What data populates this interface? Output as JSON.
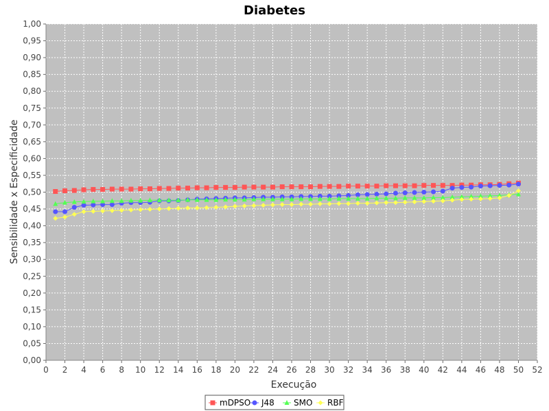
{
  "chart_data": {
    "type": "line",
    "title": "Diabetes",
    "xlabel": "Execução",
    "ylabel": "Sensibilidade x Especificidade",
    "xlim": [
      0,
      52
    ],
    "ylim": [
      0.0,
      1.0
    ],
    "x_ticks": [
      0,
      2,
      4,
      6,
      8,
      10,
      12,
      14,
      16,
      18,
      20,
      22,
      24,
      26,
      28,
      30,
      32,
      34,
      36,
      38,
      40,
      42,
      44,
      46,
      48,
      50,
      52
    ],
    "y_ticks": [
      "0,00",
      "0,05",
      "0,10",
      "0,15",
      "0,20",
      "0,25",
      "0,30",
      "0,35",
      "0,40",
      "0,45",
      "0,50",
      "0,55",
      "0,60",
      "0,65",
      "0,70",
      "0,75",
      "0,80",
      "0,85",
      "0,90",
      "0,95",
      "1,00"
    ],
    "grid": true,
    "legend_position": "bottom-center",
    "x": [
      1,
      2,
      3,
      4,
      5,
      6,
      7,
      8,
      9,
      10,
      11,
      12,
      13,
      14,
      15,
      16,
      17,
      18,
      19,
      20,
      21,
      22,
      23,
      24,
      25,
      26,
      27,
      28,
      29,
      30,
      31,
      32,
      33,
      34,
      35,
      36,
      37,
      38,
      39,
      40,
      41,
      42,
      43,
      44,
      45,
      46,
      47,
      48,
      49,
      50
    ],
    "series": [
      {
        "name": "mDPSO",
        "color": "#ff5555",
        "marker": "square",
        "values": [
          0.502,
          0.504,
          0.505,
          0.507,
          0.508,
          0.508,
          0.509,
          0.509,
          0.509,
          0.51,
          0.51,
          0.511,
          0.511,
          0.512,
          0.512,
          0.513,
          0.513,
          0.514,
          0.514,
          0.514,
          0.515,
          0.515,
          0.515,
          0.515,
          0.516,
          0.516,
          0.516,
          0.516,
          0.517,
          0.517,
          0.517,
          0.518,
          0.518,
          0.518,
          0.518,
          0.519,
          0.519,
          0.519,
          0.519,
          0.52,
          0.52,
          0.52,
          0.52,
          0.521,
          0.521,
          0.522,
          0.522,
          0.523,
          0.525,
          0.527
        ]
      },
      {
        "name": "J48",
        "color": "#5555ff",
        "marker": "circle",
        "values": [
          0.442,
          0.442,
          0.455,
          0.461,
          0.462,
          0.463,
          0.463,
          0.467,
          0.469,
          0.469,
          0.47,
          0.474,
          0.474,
          0.475,
          0.477,
          0.479,
          0.48,
          0.481,
          0.482,
          0.483,
          0.483,
          0.484,
          0.485,
          0.485,
          0.486,
          0.486,
          0.487,
          0.487,
          0.488,
          0.488,
          0.489,
          0.49,
          0.492,
          0.493,
          0.494,
          0.495,
          0.497,
          0.498,
          0.499,
          0.5,
          0.501,
          0.503,
          0.512,
          0.514,
          0.515,
          0.518,
          0.519,
          0.52,
          0.521,
          0.524
        ]
      },
      {
        "name": "SMO",
        "color": "#55ff55",
        "marker": "triangle",
        "values": [
          0.465,
          0.469,
          0.471,
          0.472,
          0.473,
          0.473,
          0.474,
          0.474,
          0.475,
          0.475,
          0.476,
          0.476,
          0.476,
          0.476,
          0.477,
          0.477,
          0.477,
          0.477,
          0.478,
          0.478,
          0.478,
          0.479,
          0.479,
          0.479,
          0.479,
          0.479,
          0.48,
          0.48,
          0.48,
          0.48,
          0.481,
          0.481,
          0.481,
          0.481,
          0.482,
          0.482,
          0.482,
          0.483,
          0.483,
          0.483,
          0.484,
          0.484,
          0.485,
          0.486,
          0.487,
          0.488,
          0.489,
          0.49,
          0.492,
          0.494
        ]
      },
      {
        "name": "RBF",
        "color": "#ffff55",
        "marker": "diamond",
        "values": [
          0.422,
          0.426,
          0.434,
          0.442,
          0.443,
          0.444,
          0.445,
          0.446,
          0.447,
          0.448,
          0.449,
          0.45,
          0.451,
          0.452,
          0.453,
          0.453,
          0.454,
          0.455,
          0.456,
          0.458,
          0.459,
          0.46,
          0.461,
          0.462,
          0.463,
          0.463,
          0.464,
          0.464,
          0.465,
          0.465,
          0.466,
          0.466,
          0.467,
          0.467,
          0.468,
          0.469,
          0.469,
          0.47,
          0.471,
          0.472,
          0.473,
          0.474,
          0.476,
          0.478,
          0.479,
          0.48,
          0.481,
          0.483,
          0.49,
          0.504
        ]
      }
    ]
  }
}
